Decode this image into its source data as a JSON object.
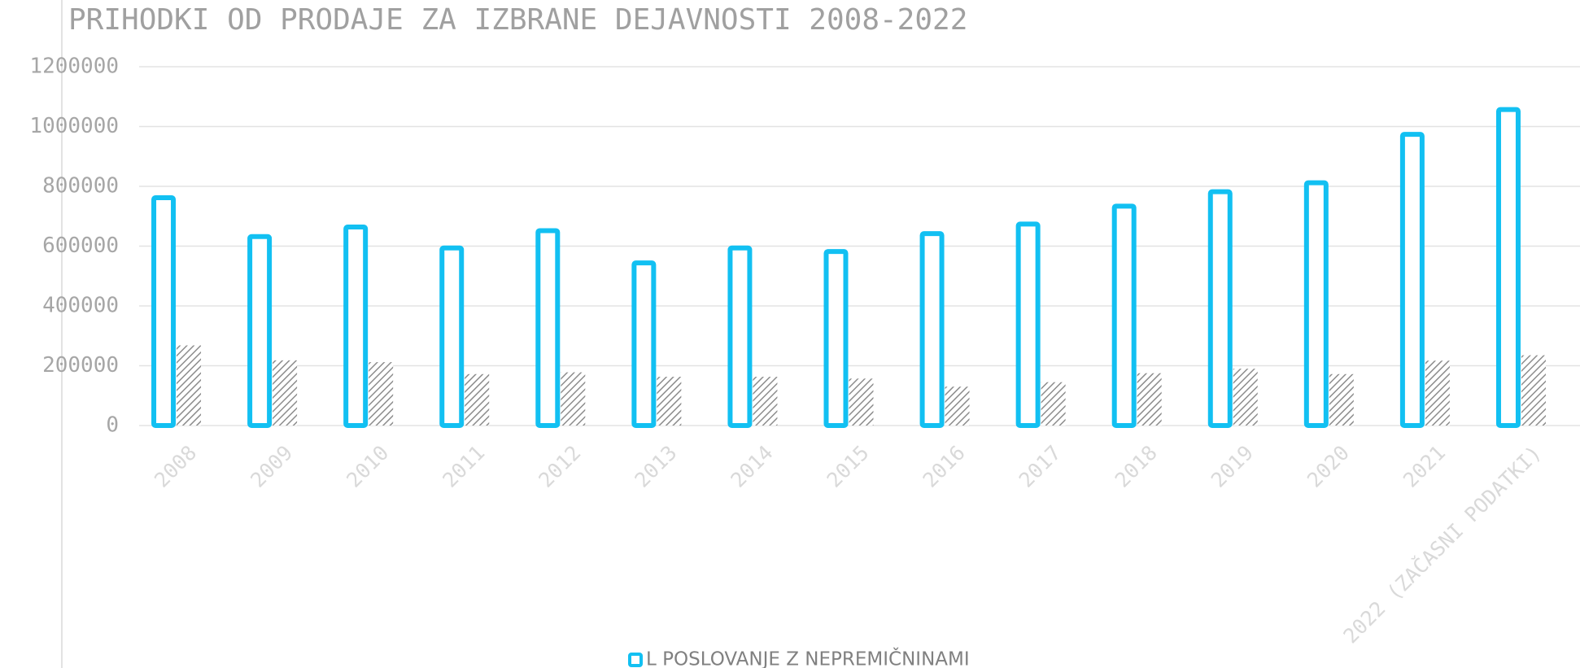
{
  "chart_data": {
    "type": "bar",
    "title": "PRIHODKI OD PRODAJE ZA IZBRANE DEJAVNOSTI 2008-2022",
    "categories": [
      "2008",
      "2009",
      "2010",
      "2011",
      "2012",
      "2013",
      "2014",
      "2015",
      "2016",
      "2017",
      "2018",
      "2019",
      "2020",
      "2021",
      "2022 (ZAČASNI PODATKI)"
    ],
    "series": [
      {
        "name": "L POSLOVANJE Z NEPREMIČNINAMI",
        "color": "#12c0f2",
        "values": [
          770000,
          640000,
          672000,
          602000,
          660000,
          552000,
          602000,
          590000,
          650000,
          682000,
          742000,
          790000,
          820000,
          982000,
          1065000
        ]
      },
      {
        "color": "#8c8c8c",
        "values": [
          268000,
          218000,
          212000,
          172000,
          178000,
          163000,
          163000,
          157000,
          130000,
          145000,
          175000,
          190000,
          172000,
          217000,
          235000
        ]
      }
    ],
    "ylim": [
      0,
      1200000
    ],
    "yticks": [
      0,
      200000,
      400000,
      600000,
      800000,
      1000000,
      1200000
    ],
    "grid": true
  }
}
